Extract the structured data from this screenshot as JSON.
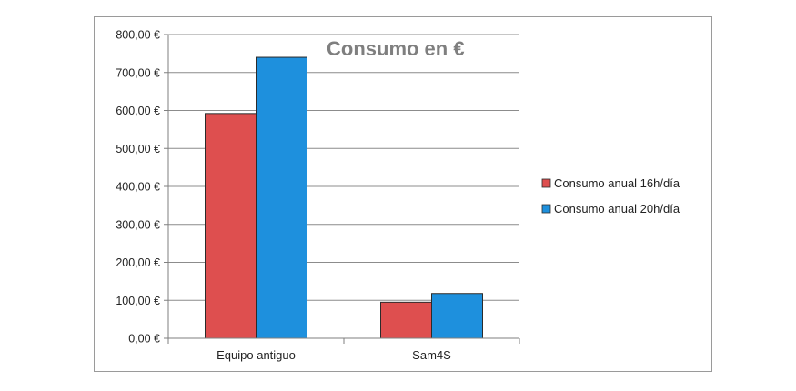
{
  "chart_data": {
    "type": "bar",
    "title": "Consumo en €",
    "categories": [
      "Equipo antiguo",
      "Sam4S"
    ],
    "series": [
      {
        "name": "Consumo anual 16h/día",
        "color": "#de4f4f",
        "values": [
          592,
          95
        ]
      },
      {
        "name": "Consumo anual 20h/día",
        "color": "#1e90dd",
        "values": [
          740,
          118
        ]
      }
    ],
    "yticks": [
      "0,00 €",
      "100,00 €",
      "200,00 €",
      "300,00 €",
      "400,00 €",
      "500,00 €",
      "600,00 €",
      "700,00 €",
      "800,00 €"
    ],
    "ylim": [
      0,
      800
    ],
    "ystep": 100,
    "grid": true,
    "legend_position": "right",
    "xlabel": "",
    "ylabel": ""
  }
}
